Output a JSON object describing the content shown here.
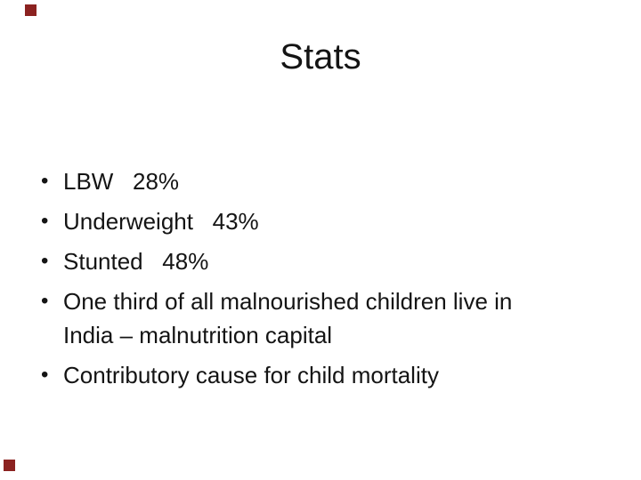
{
  "slide": {
    "title": "Stats",
    "bullet_glyph": "•",
    "bullets": [
      "LBW   28%",
      "Underweight   43%",
      "Stunted   48%",
      "One third of all malnourished children live in\nIndia – malnutrition capital",
      "Contributory cause for child mortality"
    ],
    "colors": {
      "background": "#ffffff",
      "text": "#141414",
      "corner_accent": "#8b2220"
    }
  }
}
